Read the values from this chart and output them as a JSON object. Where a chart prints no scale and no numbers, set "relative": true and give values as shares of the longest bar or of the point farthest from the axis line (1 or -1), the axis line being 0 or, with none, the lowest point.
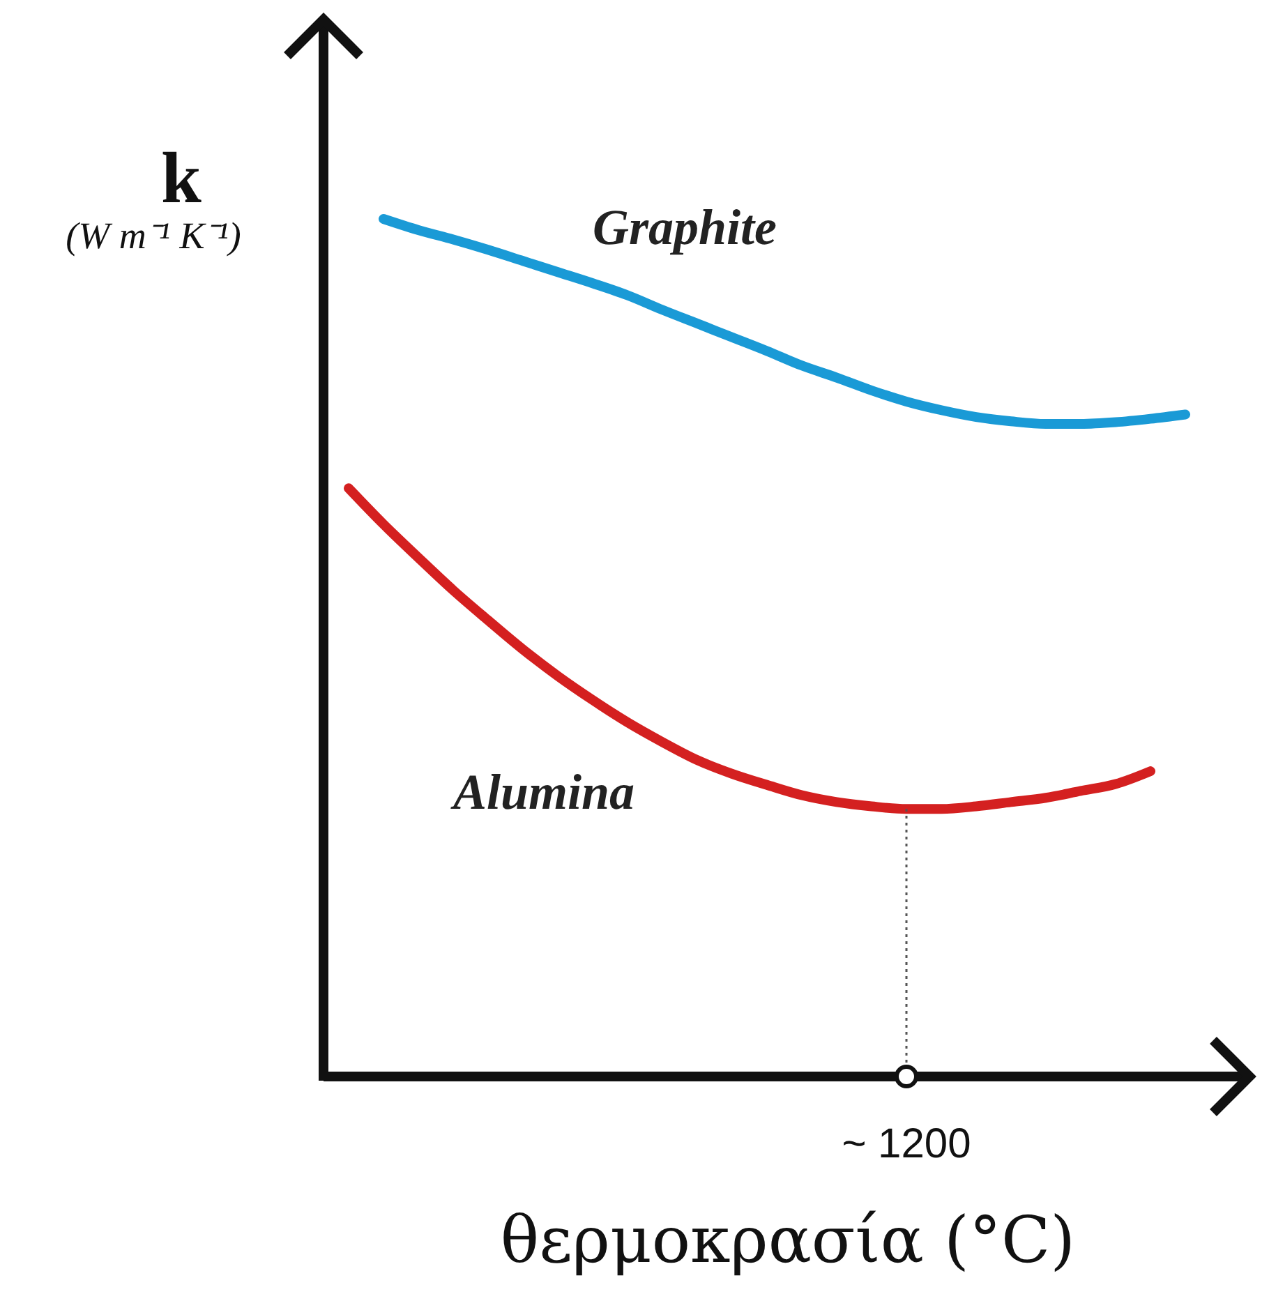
{
  "chart_data": {
    "type": "line",
    "relative": true,
    "xlabel": "θερμοκρασία (°C)",
    "ylabel": "k (W m⁻¹ K⁻¹)",
    "categories": [
      null,
      null,
      null,
      null,
      null,
      null,
      null,
      null,
      null,
      null,
      null,
      null,
      null,
      null,
      null,
      null,
      null,
      null,
      null,
      null,
      null,
      null,
      null,
      null,
      null
    ],
    "series": [
      {
        "name": "Graphite",
        "color": "#1a9ad6",
        "values": [
          null,
          1,
          0.987,
          0.976,
          0.964,
          0.951,
          0.938,
          0.925,
          0.911,
          0.894,
          0.878,
          0.862,
          0.846,
          0.829,
          0.815,
          0.8,
          0.787,
          0.777,
          0.769,
          0.764,
          0.761,
          0.761,
          0.763,
          0.767,
          0.772
        ]
      },
      {
        "name": "Alumina",
        "color": "#d42020",
        "values": [
          0.686,
          0.644,
          0.605,
          0.567,
          0.532,
          0.498,
          0.467,
          0.439,
          0.413,
          0.39,
          0.369,
          0.353,
          0.34,
          0.328,
          0.32,
          0.315,
          0.312,
          0.312,
          0.315,
          0.32,
          0.325,
          0.333,
          0.341,
          0.356,
          null
        ]
      }
    ],
    "annotations": [
      "~ 1200"
    ],
    "marker": "none",
    "line_style": "solid"
  }
}
